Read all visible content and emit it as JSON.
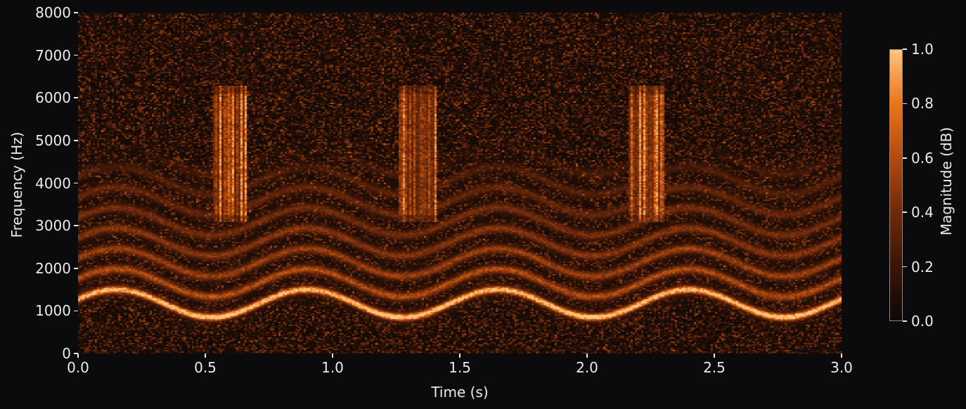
{
  "figure": {
    "background_color": "#0b0b0d",
    "text_color": "#ebebeb",
    "tick_color": "#ebebeb",
    "colorbar_outline_color": "#8a8a8a"
  },
  "chart_data": {
    "type": "heatmap",
    "variant": "spectrogram",
    "title": "",
    "xlabel": "Time (s)",
    "ylabel": "Frequency (Hz)",
    "colorbar_label": "Magnitude (dB)",
    "xlim": [
      0.0,
      3.0
    ],
    "ylim": [
      0,
      8000
    ],
    "clim": [
      0.0,
      1.0
    ],
    "x_tick_values": [
      0.0,
      0.5,
      1.0,
      1.5,
      2.0,
      2.5,
      3.0
    ],
    "x_tick_labels": [
      "0.0",
      "0.5",
      "1.0",
      "1.5",
      "2.0",
      "2.5",
      "3.0"
    ],
    "y_tick_values": [
      0,
      1000,
      2000,
      3000,
      4000,
      5000,
      6000,
      7000,
      8000
    ],
    "y_tick_labels": [
      "0",
      "1000",
      "2000",
      "3000",
      "4000",
      "5000",
      "6000",
      "7000",
      "8000"
    ],
    "colorbar_tick_values": [
      0.0,
      0.2,
      0.4,
      0.6,
      0.8,
      1.0
    ],
    "colorbar_tick_labels": [
      "0.0",
      "0.2",
      "0.4",
      "0.6",
      "0.8",
      "1.0"
    ],
    "grid": false,
    "legend": false,
    "colormap": {
      "name": "black-to-light-orange heat",
      "stops": [
        {
          "value": 0.0,
          "color": "#0c0806"
        },
        {
          "value": 0.2,
          "color": "#381507"
        },
        {
          "value": 0.4,
          "color": "#6e2a0b"
        },
        {
          "value": 0.6,
          "color": "#b04a10"
        },
        {
          "value": 0.8,
          "color": "#ea7518"
        },
        {
          "value": 0.9,
          "color": "#f59a50"
        },
        {
          "value": 1.0,
          "color": "#fdc67e"
        }
      ]
    },
    "content": {
      "description": "Spectrogram of a repeating sinusoidally frequency-modulated harmonic call over a sparse speckle noise floor, with three broadband noise bursts",
      "noise_floor": {
        "max_magnitude": 0.5,
        "character": "sparse dark-orange speckle over black"
      },
      "fm_call": {
        "carrier_center_hz": 1175,
        "carrier_depth_hz": 325,
        "carrier_min_hz": 850,
        "carrier_max_hz": 1500,
        "period_s": 0.75,
        "first_peak_time_s": 0.15,
        "band_spacing_hz": 480,
        "num_bands": 8,
        "band_magnitudes": [
          0.97,
          0.5,
          0.43,
          0.37,
          0.31,
          0.26,
          0.2,
          0.16
        ],
        "bands_fade_above_hz": 4200
      },
      "noise_bursts": [
        {
          "t_start_s": 0.53,
          "t_end_s": 0.66,
          "f_low_hz": 3080,
          "f_high_hz": 6280,
          "magnitude": 0.55
        },
        {
          "t_start_s": 1.26,
          "t_end_s": 1.41,
          "f_low_hz": 3080,
          "f_high_hz": 6280,
          "magnitude": 0.55
        },
        {
          "t_start_s": 2.16,
          "t_end_s": 2.3,
          "f_low_hz": 3080,
          "f_high_hz": 6280,
          "magnitude": 0.55
        }
      ]
    }
  }
}
